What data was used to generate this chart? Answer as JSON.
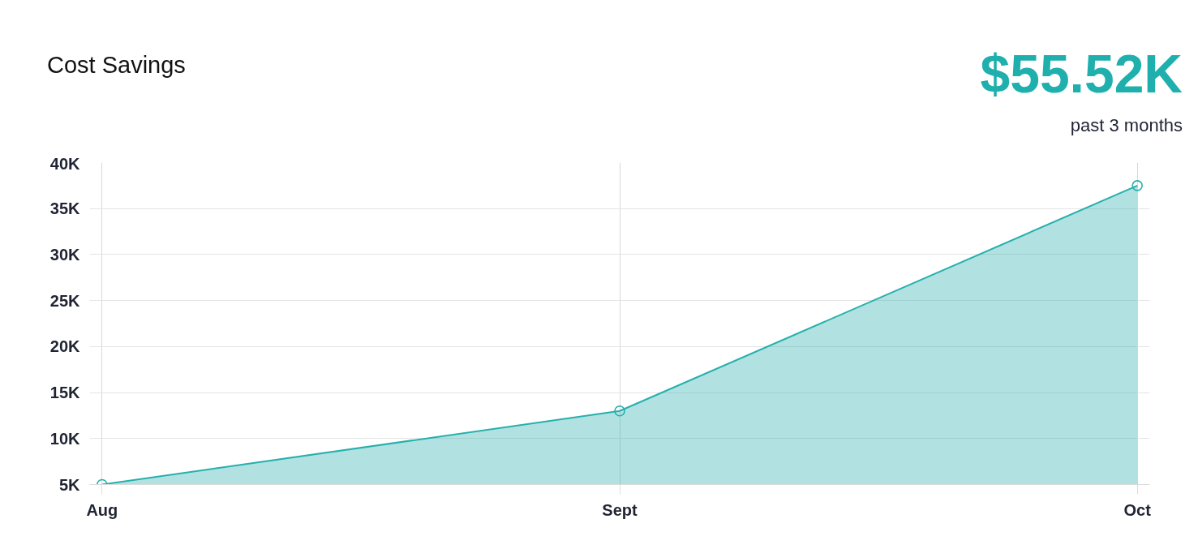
{
  "chart_data": {
    "type": "area",
    "title": "Cost Savings",
    "annotations": [
      "$55.52K",
      "past 3 months"
    ],
    "categories": [
      "Aug",
      "Sept",
      "Oct"
    ],
    "series": [
      {
        "color": "#26b0ad",
        "values": [
          5000,
          13000,
          37500
        ]
      }
    ],
    "ylim": [
      5000,
      40000
    ],
    "yticks": [
      {
        "value": 5000,
        "label": "5K"
      },
      {
        "value": 10000,
        "label": "10K"
      },
      {
        "value": 15000,
        "label": "15K"
      },
      {
        "value": 20000,
        "label": "20K"
      },
      {
        "value": 25000,
        "label": "25K"
      },
      {
        "value": 30000,
        "label": "30K"
      },
      {
        "value": 35000,
        "label": "35K"
      },
      {
        "value": 40000,
        "label": "40K"
      }
    ],
    "grid": true,
    "marker": "circle"
  }
}
